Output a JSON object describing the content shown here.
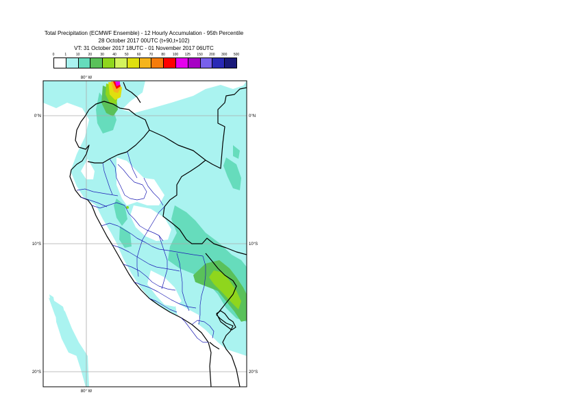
{
  "title": {
    "line1": "Total Precipitation (ECMWF Ensemble) - 12 Hourly Accumulation - 95th Percentile",
    "line2": "28 October 2017 00UTC (t+90,t+102)",
    "line3": "VT: 31 October 2017 18UTC - 01 November 2017 06UTC"
  },
  "legend": {
    "labels": [
      "0",
      "1",
      "10",
      "20",
      "30",
      "40",
      "50",
      "60",
      "70",
      "80",
      "100",
      "125",
      "150",
      "200",
      "300",
      "500"
    ],
    "colors": [
      "#ffffff",
      "#aaf3f0",
      "#66dcbc",
      "#5ac15a",
      "#8fd61d",
      "#d3f25d",
      "#dfdf0f",
      "#f5b41c",
      "#f57c0c",
      "#ff0000",
      "#e600ee",
      "#a600c4",
      "#7860ec",
      "#2a2ab6",
      "#1a1a7a"
    ]
  },
  "axes": {
    "lon_top": "80° W",
    "lon_bottom": "80° W",
    "lat_left": [
      "0°N",
      "10°S",
      "20°S"
    ],
    "lat_right": [
      "0°N",
      "10°S",
      "20°S"
    ]
  }
}
